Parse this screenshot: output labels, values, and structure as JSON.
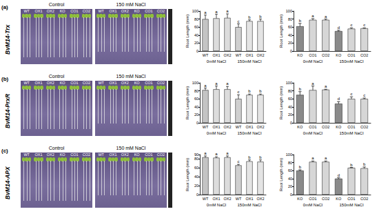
{
  "rows": [
    {
      "label": "(a)",
      "gene": "BvM14-Trx",
      "photo": {
        "panels": [
          "Control",
          "150 mM NaCl"
        ],
        "lines": [
          "WT",
          "OX1",
          "OX2",
          "KO",
          "CO1",
          "CO2"
        ]
      }
    },
    {
      "label": "(b)",
      "gene": "BvM14-PrxR",
      "photo": {
        "panels": [
          "Control",
          "150 mM NaCl"
        ],
        "lines": [
          "WT",
          "OX1",
          "OX2",
          "KO",
          "CO1",
          "CO2"
        ]
      }
    },
    {
      "label": "(c)",
      "gene": "BvM14-APX",
      "photo": {
        "panels": [
          "Control",
          "150 mM NaCl"
        ],
        "lines": [
          "WT",
          "OX1",
          "OX2",
          "KO",
          "CO1",
          "CO2"
        ]
      }
    }
  ],
  "chart_data": [
    {
      "type": "bar",
      "ylabel": "Root Length (mm)",
      "categories": [
        "WT",
        "OX1",
        "OX2",
        "WT",
        "OX1",
        "OX2"
      ],
      "groups": [
        "0mM NaCl",
        "150mM NaCl"
      ],
      "values": [
        80,
        82,
        83,
        60,
        75,
        75
      ],
      "errors": [
        10,
        10,
        10,
        8,
        3,
        5
      ],
      "letters": [
        "a",
        "a",
        "a",
        "c",
        "b",
        "b"
      ],
      "colors": [
        "#c4c4c4",
        "#dcdcdc",
        "#dcdcdc",
        "#cfcfcf",
        "#e4e4e4",
        "#e4e4e4"
      ],
      "ylim": [
        0,
        100
      ],
      "yticks": [
        0,
        20,
        40,
        60,
        80,
        100
      ]
    },
    {
      "type": "bar",
      "ylabel": "Root Length (mm)",
      "categories": [
        "KO",
        "CO1",
        "CO2",
        "KO",
        "CO1",
        "CO2"
      ],
      "groups": [
        "0mM NaCl",
        "150mM NaCl"
      ],
      "values": [
        62,
        78,
        78,
        50,
        56,
        57
      ],
      "errors": [
        7,
        3,
        2,
        2,
        2,
        1
      ],
      "letters": [
        "b",
        "a",
        "a",
        "d",
        "c",
        "c"
      ],
      "colors": [
        "#8a8a8a",
        "#d6d6d6",
        "#d6d6d6",
        "#8a8a8a",
        "#d6d6d6",
        "#d6d6d6"
      ],
      "ylim": [
        0,
        100
      ],
      "yticks": [
        0,
        20,
        40,
        60,
        80,
        100
      ]
    },
    {
      "type": "bar",
      "ylabel": "Root Length (mm)",
      "categories": [
        "WT",
        "OX1",
        "OX2",
        "WT",
        "OX1",
        "OX2"
      ],
      "groups": [
        "0mM NaCl",
        "150mM NaCl"
      ],
      "values": [
        82,
        84,
        84,
        60,
        70,
        70
      ],
      "errors": [
        5,
        8,
        7,
        10,
        2,
        2
      ],
      "letters": [
        "a",
        "a",
        "a",
        "c",
        "b",
        "b"
      ],
      "colors": [
        "#c4c4c4",
        "#dcdcdc",
        "#dcdcdc",
        "#cfcfcf",
        "#e4e4e4",
        "#e4e4e4"
      ],
      "ylim": [
        0,
        100
      ],
      "yticks": [
        0,
        20,
        40,
        60,
        80,
        100
      ]
    },
    {
      "type": "bar",
      "ylabel": "Root Length (mm)",
      "categories": [
        "KO",
        "CO1",
        "CO2",
        "KO",
        "CO1",
        "CO2"
      ],
      "groups": [
        "0mM NaCl",
        "150mM NaCl"
      ],
      "values": [
        70,
        82,
        83,
        48,
        60,
        60
      ],
      "errors": [
        8,
        10,
        1,
        5,
        5,
        2
      ],
      "letters": [
        "b",
        "a",
        "a",
        "d",
        "c",
        "c"
      ],
      "colors": [
        "#8a8a8a",
        "#d6d6d6",
        "#d6d6d6",
        "#8a8a8a",
        "#d6d6d6",
        "#d6d6d6"
      ],
      "ylim": [
        0,
        100
      ],
      "yticks": [
        0,
        20,
        40,
        60,
        80,
        100
      ]
    },
    {
      "type": "bar",
      "ylabel": "Root Length (mm)",
      "categories": [
        "WT",
        "OX1",
        "OX2",
        "WT",
        "OX1",
        "OX2"
      ],
      "groups": [
        "0mM NaCl",
        "150mM NaCl"
      ],
      "values": [
        84,
        83,
        84,
        66,
        75,
        74
      ],
      "errors": [
        3,
        2,
        3,
        2,
        3,
        4
      ],
      "letters": [
        "a",
        "a",
        "a",
        "c",
        "b",
        "b"
      ],
      "colors": [
        "#c4c4c4",
        "#dcdcdc",
        "#dcdcdc",
        "#cfcfcf",
        "#e4e4e4",
        "#e4e4e4"
      ],
      "ylim": [
        0,
        90
      ],
      "yticks": [
        0,
        20,
        40,
        60,
        80
      ]
    },
    {
      "type": "bar",
      "ylabel": "Root Length (mm)",
      "categories": [
        "KO",
        "CO1",
        "CO2",
        "KO",
        "CO1",
        "CO2"
      ],
      "groups": [
        "0mM NaCl",
        "150mM NaCl"
      ],
      "values": [
        60,
        82,
        82,
        40,
        67,
        66
      ],
      "errors": [
        2,
        2,
        2,
        2,
        1,
        3
      ],
      "letters": [
        "b",
        "a",
        "a",
        "d",
        "b",
        "b"
      ],
      "colors": [
        "#8a8a8a",
        "#d6d6d6",
        "#d6d6d6",
        "#8a8a8a",
        "#d6d6d6",
        "#d6d6d6"
      ],
      "ylim": [
        0,
        100
      ],
      "yticks": [
        0,
        20,
        40,
        60,
        80,
        100
      ]
    }
  ]
}
